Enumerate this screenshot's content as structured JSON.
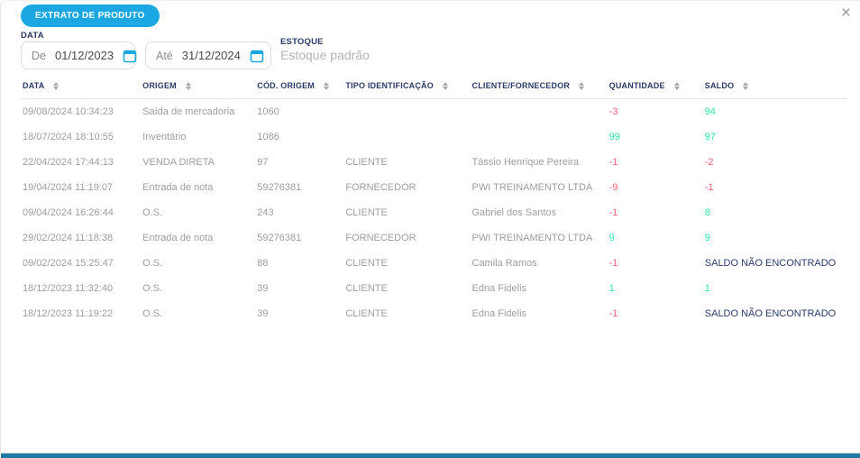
{
  "modal": {
    "close_glyph": "×"
  },
  "toolbar": {
    "extract_button_label": "EXTRATO DE PRODUTO"
  },
  "filters": {
    "date_label": "DATA",
    "date_from": {
      "prefix": "De",
      "value": "01/12/2023"
    },
    "date_to": {
      "prefix": "Até",
      "value": "31/12/2024"
    },
    "stock_label": "ESTOQUE",
    "stock_value": "Estoque padrão"
  },
  "table": {
    "columns": [
      {
        "label": "DATA"
      },
      {
        "label": "ORIGEM"
      },
      {
        "label": "CÓD. ORIGEM"
      },
      {
        "label": "TIPO IDENTIFICAÇÃO"
      },
      {
        "label": "CLIENTE/FORNECEDOR"
      },
      {
        "label": "QUANTIDADE"
      },
      {
        "label": "SALDO"
      }
    ],
    "rows": [
      {
        "date": "09/08/2024 10:34:23",
        "origin": "Saída de mercadoria",
        "origin_code": "1060",
        "id_type": "",
        "client": "",
        "qty": "-3",
        "qty_state": "negative",
        "saldo": "94",
        "saldo_state": "positive"
      },
      {
        "date": "18/07/2024 18:10:55",
        "origin": "Inventário",
        "origin_code": "1086",
        "id_type": "",
        "client": "",
        "qty": "99",
        "qty_state": "positive",
        "saldo": "97",
        "saldo_state": "positive"
      },
      {
        "date": "22/04/2024 17:44:13",
        "origin": "VENDA DIRETA",
        "origin_code": "97",
        "id_type": "CLIENTE",
        "client": "Tássio Henrique Pereira",
        "qty": "-1",
        "qty_state": "negative",
        "saldo": "-2",
        "saldo_state": "negative"
      },
      {
        "date": "19/04/2024 11:19:07",
        "origin": "Entrada de nota",
        "origin_code": "59276381",
        "id_type": "FORNECEDOR",
        "client": "PWI TREINAMENTO LTDA",
        "qty": "-9",
        "qty_state": "negative",
        "saldo": "-1",
        "saldo_state": "negative"
      },
      {
        "date": "09/04/2024 16:26:44",
        "origin": "O.S.",
        "origin_code": "243",
        "id_type": "CLIENTE",
        "client": "Gabriel dos Santos",
        "qty": "-1",
        "qty_state": "negative",
        "saldo": "8",
        "saldo_state": "positive"
      },
      {
        "date": "29/02/2024 11:18:38",
        "origin": "Entrada de nota",
        "origin_code": "59276381",
        "id_type": "FORNECEDOR",
        "client": "PWI TREINAMENTO LTDA",
        "qty": "9",
        "qty_state": "positive",
        "saldo": "9",
        "saldo_state": "positive"
      },
      {
        "date": "09/02/2024 15:25:47",
        "origin": "O.S.",
        "origin_code": "88",
        "id_type": "CLIENTE",
        "client": "Camila Ramos",
        "qty": "-1",
        "qty_state": "negative",
        "saldo": "SALDO NÃO ENCONTRADO",
        "saldo_state": "notfound"
      },
      {
        "date": "18/12/2023 11:32:40",
        "origin": "O.S.",
        "origin_code": "39",
        "id_type": "CLIENTE",
        "client": "Edna Fidelis",
        "qty": "1",
        "qty_state": "positive",
        "saldo": "1",
        "saldo_state": "positive"
      },
      {
        "date": "18/12/2023 11:19:22",
        "origin": "O.S.",
        "origin_code": "39",
        "id_type": "CLIENTE",
        "client": "Edna Fidelis",
        "qty": "-1",
        "qty_state": "negative",
        "saldo": "SALDO NÃO ENCONTRADO",
        "saldo_state": "notfound"
      }
    ]
  },
  "colors": {
    "accent": "#1BA8E2",
    "header_navy": "#2A3B69",
    "positive": "#2EE5A2",
    "negative": "#F7666F",
    "bottom_bar": "#1F7BA6"
  }
}
